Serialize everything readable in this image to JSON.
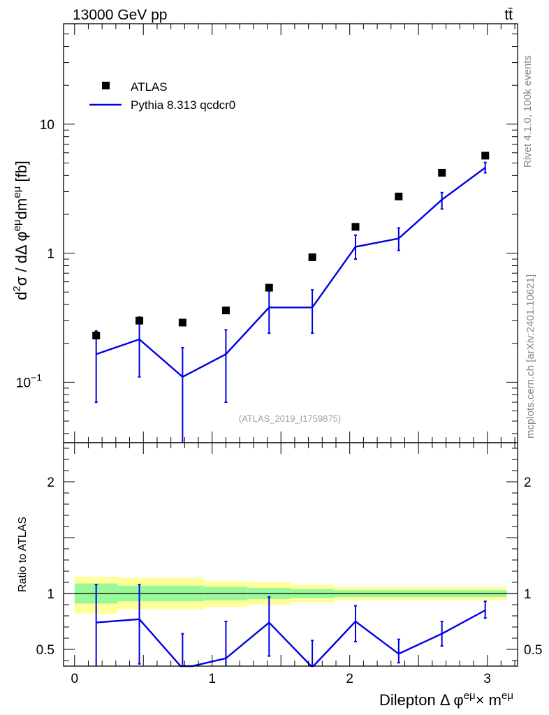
{
  "header": {
    "energy_label": "13000 GeV pp",
    "process_label": "tt̄"
  },
  "side": {
    "rivet_label": "Rivet 4.1.0,  100k events",
    "mcplots_label": "mcplots.cern.ch [arXiv:2401.10621]"
  },
  "analysis_label": "(ATLAS_2019_I1759875)",
  "colors": {
    "mc": "#0000e6",
    "data": "#000000",
    "band_inner": "#99f899",
    "band_outer": "#ffff99"
  },
  "chart_data": [
    {
      "type": "line",
      "panel": "main",
      "title": "",
      "xlabel": "",
      "ylabel": "d²σ / dΔφ^{eμ}dm^{eμ} [fb]",
      "yscale": "log",
      "ylim": [
        0.034,
        60
      ],
      "xlim": [
        -0.08,
        3.22
      ],
      "y_tick_labels": [
        {
          "value": 0.1,
          "base": "10",
          "exp": "−1"
        },
        {
          "value": 1,
          "base": "1",
          "exp": ""
        },
        {
          "value": 10,
          "base": "10",
          "exp": ""
        }
      ],
      "legend": {
        "position": "top-left",
        "entries": [
          "ATLAS",
          "Pythia 8.313 qcdcr0"
        ]
      },
      "bins": [
        [
          0.0,
          0.314
        ],
        [
          0.314,
          0.628
        ],
        [
          0.628,
          0.942
        ],
        [
          0.942,
          1.257
        ],
        [
          1.257,
          1.571
        ],
        [
          1.571,
          1.885
        ],
        [
          1.885,
          2.199
        ],
        [
          2.199,
          2.513
        ],
        [
          2.513,
          2.827
        ],
        [
          2.827,
          3.142
        ]
      ],
      "x": [
        0.157,
        0.471,
        0.785,
        1.1,
        1.414,
        1.728,
        2.042,
        2.356,
        2.67,
        2.985
      ],
      "series": [
        {
          "name": "ATLAS",
          "kind": "markers",
          "values": [
            0.23,
            0.3,
            0.29,
            0.36,
            0.54,
            0.93,
            1.6,
            2.75,
            4.2,
            5.7
          ]
        },
        {
          "name": "Pythia 8.313 qcdcr0",
          "kind": "line",
          "values": [
            0.165,
            0.215,
            0.11,
            0.165,
            0.38,
            0.38,
            1.12,
            1.3,
            2.6,
            4.6
          ],
          "err_low": [
            0.07,
            0.11,
            0.02,
            0.07,
            0.24,
            0.24,
            0.9,
            1.05,
            2.2,
            4.2
          ],
          "err_high": [
            0.25,
            0.32,
            0.185,
            0.255,
            0.53,
            0.52,
            1.38,
            1.57,
            2.95,
            5.05
          ]
        }
      ]
    },
    {
      "type": "line",
      "panel": "ratio",
      "title": "",
      "xlabel": "Dilepton Δ φ^{eμ} × m^{eμ}",
      "ylabel": "Ratio to ATLAS",
      "ylim": [
        0.35,
        2.35
      ],
      "xlim": [
        -0.08,
        3.22
      ],
      "y_ticks": [
        0.5,
        1,
        2
      ],
      "y_tick_labels": [
        "0.5",
        "1",
        "2"
      ],
      "x_ticks": [
        0,
        1,
        2,
        3
      ],
      "x_tick_labels": [
        "0",
        "1",
        "2",
        "3"
      ],
      "reference_line": 1,
      "bands": {
        "edges": [
          0.0,
          0.314,
          0.628,
          0.942,
          1.257,
          1.571,
          1.885,
          2.199,
          2.513,
          2.827,
          3.142
        ],
        "inner_low": [
          0.91,
          0.93,
          0.93,
          0.94,
          0.95,
          0.96,
          0.97,
          0.97,
          0.97,
          0.97
        ],
        "inner_high": [
          1.09,
          1.07,
          1.07,
          1.06,
          1.05,
          1.04,
          1.03,
          1.03,
          1.03,
          1.03
        ],
        "outer_low": [
          0.82,
          0.86,
          0.86,
          0.88,
          0.9,
          0.92,
          0.94,
          0.94,
          0.94,
          0.94
        ],
        "outer_high": [
          1.15,
          1.14,
          1.14,
          1.11,
          1.1,
          1.08,
          1.06,
          1.06,
          1.06,
          1.06
        ]
      },
      "series": [
        {
          "name": "Pythia 8.313 qcdcr0 / ATLAS",
          "x": [
            0.157,
            0.471,
            0.785,
            1.1,
            1.414,
            1.728,
            2.042,
            2.356,
            2.67,
            2.985
          ],
          "values": [
            0.74,
            0.77,
            0.33,
            0.42,
            0.74,
            0.34,
            0.75,
            0.46,
            0.64,
            0.85
          ],
          "err_low": [
            0.3,
            0.37,
            0.1,
            0.19,
            0.44,
            0.26,
            0.57,
            0.38,
            0.53,
            0.78
          ],
          "err_high": [
            1.08,
            1.08,
            0.64,
            0.75,
            0.97,
            0.58,
            0.89,
            0.59,
            0.75,
            0.93
          ]
        }
      ]
    }
  ]
}
